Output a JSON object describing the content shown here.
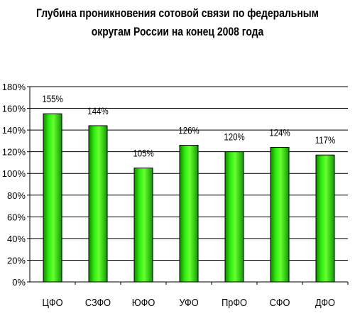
{
  "title_line1": "Глубина проникновения сотовой связи по федеральным",
  "title_line2": "округам России на конец 2008 года",
  "chart_data": {
    "type": "bar",
    "title": "Глубина проникновения сотовой связи по федеральным округам России на конец 2008 года",
    "xlabel": "",
    "ylabel": "",
    "categories": [
      "ЦФО",
      "СЗФО",
      "ЮФО",
      "УФО",
      "ПрФО",
      "СФО",
      "ДФО"
    ],
    "values": [
      155,
      144,
      105,
      126,
      120,
      124,
      117
    ],
    "value_labels": [
      "155%",
      "144%",
      "105%",
      "126%",
      "120%",
      "124%",
      "117%"
    ],
    "y_ticks": [
      "0%",
      "20%",
      "40%",
      "60%",
      "80%",
      "100%",
      "120%",
      "140%",
      "160%",
      "180%"
    ],
    "ylim": [
      0,
      180
    ],
    "grid": true,
    "legend": "none",
    "bar_color": "#22dd00",
    "bar_highlight": "#66ff33",
    "bar_shadow": "#118800"
  }
}
